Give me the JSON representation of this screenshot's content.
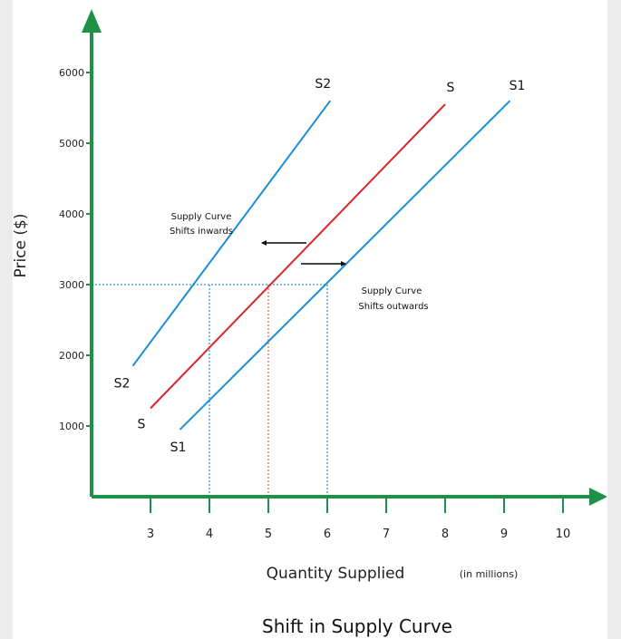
{
  "chart_data": {
    "type": "line",
    "title": "Shift in Supply Curve",
    "xlabel": "Quantity Supplied",
    "x_units": "(in millions)",
    "ylabel": "Price ($)",
    "xlim": [
      2,
      10.8
    ],
    "ylim": [
      0,
      6900
    ],
    "x_ticks": [
      "3",
      "4",
      "5",
      "6",
      "7",
      "8",
      "9",
      "10"
    ],
    "y_ticks": [
      "1000",
      "2000",
      "3000",
      "4000",
      "5000",
      "6000"
    ],
    "grid": false,
    "legend": "none",
    "series": [
      {
        "name": "S2",
        "color": "#1a8fd6",
        "x": [
          2.7,
          6.05
        ],
        "y": [
          1850,
          5600
        ],
        "label_start": "S2",
        "label_end": "S2"
      },
      {
        "name": "S",
        "color": "#d8262a",
        "x": [
          3.0,
          8.0
        ],
        "y": [
          1250,
          5550
        ],
        "label_start": "S",
        "label_end": "S"
      },
      {
        "name": "S1",
        "color": "#1a8fd6",
        "x": [
          3.5,
          9.1
        ],
        "y": [
          950,
          5600
        ],
        "label_start": "S1",
        "label_end": "S1"
      }
    ],
    "reference_lines": {
      "price": 3000,
      "quantities": [
        4,
        5,
        6
      ],
      "colors": {
        "horizontal": "#7fb8ea",
        "x4": "#7fb8ea",
        "x5": "#f0a07c",
        "x6": "#7fb8ea"
      }
    },
    "annotations": [
      {
        "lines": [
          "Supply Curve",
          "Shifts inwards"
        ],
        "arrow": "left"
      },
      {
        "lines": [
          "Supply Curve",
          "Shifts outwards"
        ],
        "arrow": "right"
      }
    ],
    "axis_color": "#1e9147"
  }
}
